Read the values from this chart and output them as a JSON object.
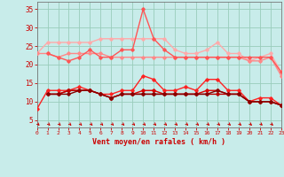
{
  "x": [
    0,
    1,
    2,
    3,
    4,
    5,
    6,
    7,
    8,
    9,
    10,
    11,
    12,
    13,
    14,
    15,
    16,
    17,
    18,
    19,
    20,
    21,
    22,
    23
  ],
  "lines": [
    {
      "color": "#ffaaaa",
      "lw": 1.0,
      "marker": "D",
      "markersize": 1.8,
      "values": [
        23,
        26,
        26,
        26,
        26,
        26,
        27,
        27,
        27,
        27,
        27,
        27,
        27,
        24,
        23,
        23,
        24,
        26,
        23,
        23,
        21,
        22,
        23,
        18
      ]
    },
    {
      "color": "#ff8888",
      "lw": 1.0,
      "marker": "D",
      "markersize": 1.8,
      "values": [
        23,
        23,
        22,
        23,
        23,
        23,
        23,
        22,
        22,
        22,
        22,
        22,
        22,
        22,
        22,
        22,
        22,
        22,
        22,
        22,
        21,
        21,
        22,
        17
      ]
    },
    {
      "color": "#ff5555",
      "lw": 1.0,
      "marker": "D",
      "markersize": 1.8,
      "values": [
        null,
        23,
        22,
        21,
        22,
        24,
        22,
        22,
        24,
        24,
        35,
        27,
        24,
        22,
        22,
        22,
        22,
        22,
        22,
        22,
        22,
        22,
        22,
        18
      ]
    },
    {
      "color": "#ff2222",
      "lw": 1.0,
      "marker": "D",
      "markersize": 1.8,
      "values": [
        8,
        13,
        13,
        13,
        14,
        13,
        12,
        12,
        13,
        13,
        17,
        16,
        13,
        13,
        14,
        13,
        16,
        16,
        13,
        13,
        10,
        11,
        11,
        9
      ]
    },
    {
      "color": "#dd0000",
      "lw": 1.0,
      "marker": "D",
      "markersize": 1.8,
      "values": [
        null,
        12,
        12,
        13,
        13,
        13,
        12,
        11,
        12,
        12,
        13,
        13,
        12,
        12,
        12,
        12,
        13,
        13,
        12,
        12,
        10,
        10,
        10,
        9
      ]
    },
    {
      "color": "#bb0000",
      "lw": 1.0,
      "marker": "D",
      "markersize": 1.8,
      "values": [
        null,
        12,
        12,
        13,
        13,
        13,
        12,
        11,
        12,
        12,
        12,
        12,
        12,
        12,
        12,
        12,
        12,
        12,
        12,
        12,
        10,
        10,
        10,
        9
      ]
    },
    {
      "color": "#880000",
      "lw": 1.0,
      "marker": "D",
      "markersize": 1.8,
      "values": [
        null,
        12,
        12,
        12,
        13,
        13,
        12,
        11,
        12,
        12,
        12,
        12,
        12,
        12,
        12,
        12,
        12,
        13,
        12,
        12,
        10,
        10,
        10,
        9
      ]
    }
  ],
  "bg_color": "#c8ecea",
  "grid_color": "#99ccbb",
  "xlabel": "Vent moyen/en rafales ( km/h )",
  "xlim": [
    0,
    23
  ],
  "ylim": [
    3,
    37
  ],
  "yticks": [
    5,
    10,
    15,
    20,
    25,
    30,
    35
  ],
  "xticks": [
    0,
    1,
    2,
    3,
    4,
    5,
    6,
    7,
    8,
    9,
    10,
    11,
    12,
    13,
    14,
    15,
    16,
    17,
    18,
    19,
    20,
    21,
    22,
    23
  ],
  "arrow_color": "#cc0000"
}
